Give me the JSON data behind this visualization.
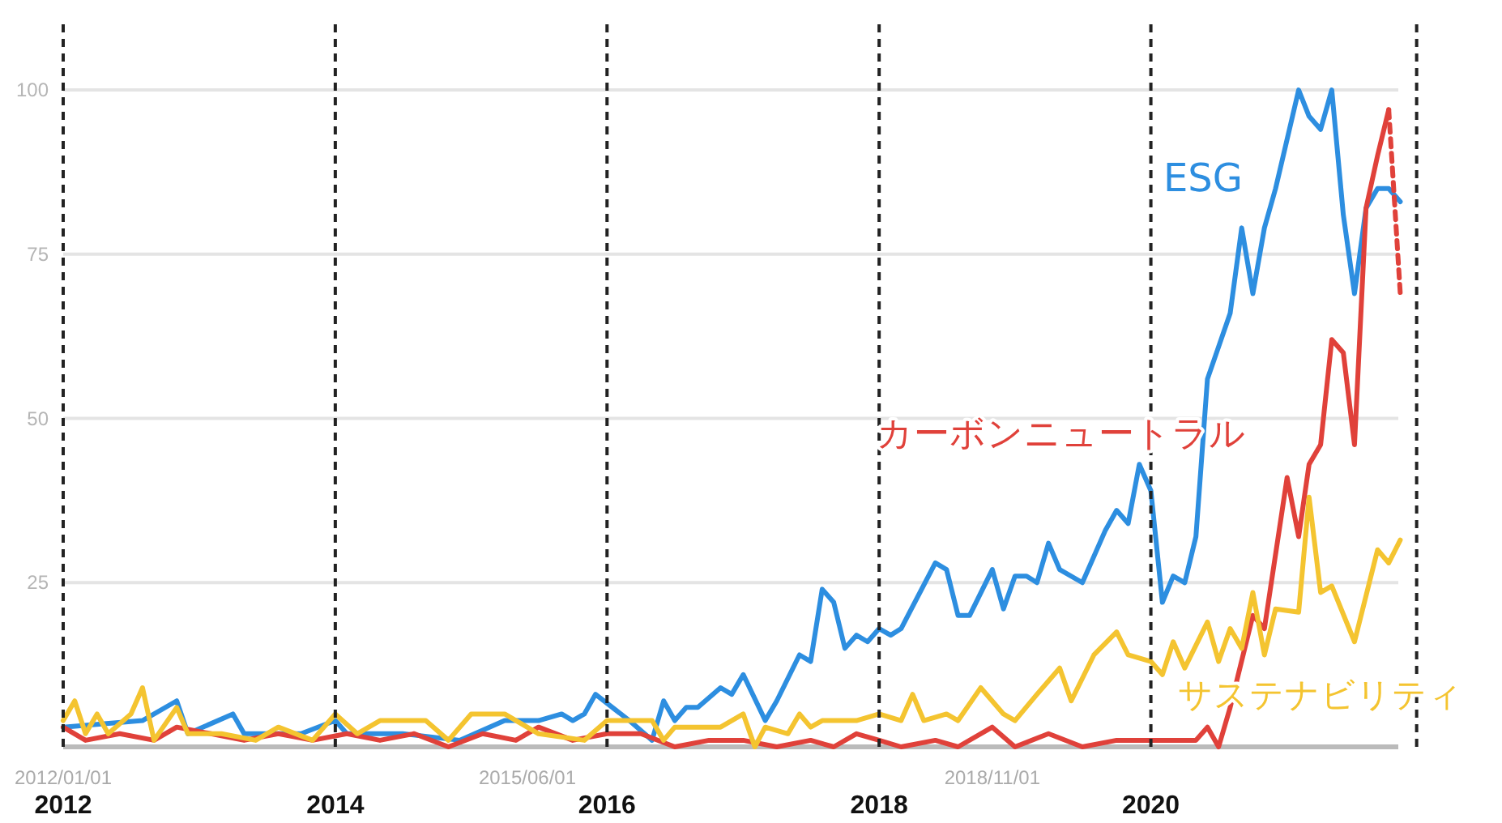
{
  "chart_data": {
    "type": "line",
    "xlim": [
      "2012-01-01",
      "2021-12-31"
    ],
    "ylim": [
      0,
      110
    ],
    "xticks": [
      {
        "value": "2012-01-01",
        "label": "2012/01/01"
      },
      {
        "value": "2015-06-01",
        "label": "2015/06/01"
      },
      {
        "value": "2018-11-01",
        "label": "2018/11/01"
      }
    ],
    "yticks": [
      {
        "value": 0,
        "label": null
      },
      25,
      50,
      75,
      100
    ],
    "grid": "y",
    "ref_lines": [
      {
        "axis": "x",
        "value": "2012-01-01",
        "label": "2012",
        "line_style": "dashed",
        "color": "#222222"
      },
      {
        "axis": "x",
        "value": "2014-01-01",
        "label": "2014",
        "line_style": "dashed",
        "color": "#222222"
      },
      {
        "axis": "x",
        "value": "2016-01-01",
        "label": "2016",
        "line_style": "dashed",
        "color": "#222222"
      },
      {
        "axis": "x",
        "value": "2018-01-01",
        "label": "2018",
        "line_style": "dashed",
        "color": "#222222"
      },
      {
        "axis": "x",
        "value": "2020-01-01",
        "label": "2020",
        "line_style": "dashed",
        "color": "#222222"
      },
      {
        "axis": "x",
        "value": "2021-12-15",
        "line_style": "dashed",
        "color": "#222222"
      }
    ],
    "series": [
      {
        "name": "ESG",
        "color": "#2d8ee0",
        "x": [
          "2012-01",
          "2012-08",
          "2012-11",
          "2012-12",
          "2013-04",
          "2013-05",
          "2013-10",
          "2014-01",
          "2014-02",
          "2014-07",
          "2014-12",
          "2015-04",
          "2015-07",
          "2015-09",
          "2015-10",
          "2015-11",
          "2015-12",
          "2016-03",
          "2016-05",
          "2016-06",
          "2016-07",
          "2016-08",
          "2016-09",
          "2016-11",
          "2016-12",
          "2017-01",
          "2017-03",
          "2017-04",
          "2017-06",
          "2017-07",
          "2017-08",
          "2017-09",
          "2017-10",
          "2017-11",
          "2017-12",
          "2018-01",
          "2018-02",
          "2018-03",
          "2018-06",
          "2018-07",
          "2018-08",
          "2018-09",
          "2018-11",
          "2018-12",
          "2019-01",
          "2019-02",
          "2019-03",
          "2019-04",
          "2019-05",
          "2019-07",
          "2019-09",
          "2019-10",
          "2019-11",
          "2019-12",
          "2020-01",
          "2020-02",
          "2020-03",
          "2020-04",
          "2020-05",
          "2020-06",
          "2020-08",
          "2020-09",
          "2020-10",
          "2020-11",
          "2020-12",
          "2021-02",
          "2021-03",
          "2021-04",
          "2021-05",
          "2021-06",
          "2021-07",
          "2021-08",
          "2021-09",
          "2021-10",
          "2021-11"
        ],
        "values": [
          3,
          4,
          7,
          2,
          5,
          2,
          2,
          4,
          2,
          2,
          1,
          4,
          4,
          5,
          4,
          5,
          8,
          4,
          1,
          7,
          4,
          6,
          6,
          9,
          8,
          11,
          4,
          7,
          14,
          13,
          24,
          22,
          15,
          17,
          16,
          18,
          17,
          18,
          28,
          27,
          20,
          20,
          27,
          21,
          26,
          26,
          25,
          31,
          27,
          25,
          33,
          36,
          34,
          43,
          39,
          22,
          26,
          25,
          32,
          56,
          66,
          79,
          69,
          79,
          85,
          100,
          96,
          94,
          100,
          81,
          69,
          82,
          85,
          85,
          83
        ]
      },
      {
        "name": "カーボンニュートラル",
        "color": "#e0413a",
        "x": [
          "2012-01",
          "2012-03",
          "2012-06",
          "2012-09",
          "2012-11",
          "2013-02",
          "2013-05",
          "2013-08",
          "2013-11",
          "2014-02",
          "2014-05",
          "2014-08",
          "2014-11",
          "2015-02",
          "2015-05",
          "2015-07",
          "2015-10",
          "2016-01",
          "2016-04",
          "2016-07",
          "2016-10",
          "2017-01",
          "2017-04",
          "2017-07",
          "2017-09",
          "2017-11",
          "2018-01",
          "2018-03",
          "2018-06",
          "2018-08",
          "2018-11",
          "2019-01",
          "2019-04",
          "2019-07",
          "2019-10",
          "2020-01",
          "2020-04",
          "2020-05",
          "2020-06",
          "2020-07",
          "2020-08",
          "2020-10",
          "2020-11",
          "2021-01",
          "2021-02",
          "2021-03",
          "2021-04",
          "2021-05",
          "2021-06",
          "2021-07",
          "2021-08",
          "2021-09",
          "2021-10"
        ],
        "values": [
          3,
          1,
          2,
          1,
          3,
          2,
          1,
          2,
          1,
          2,
          1,
          2,
          0,
          2,
          1,
          3,
          1,
          2,
          2,
          0,
          1,
          1,
          0,
          1,
          0,
          2,
          1,
          0,
          1,
          0,
          3,
          0,
          2,
          0,
          1,
          1,
          1,
          1,
          3,
          0,
          6,
          20,
          18,
          41,
          32,
          43,
          46,
          62,
          60,
          46,
          82,
          90,
          97
        ]
      },
      {
        "type": "line",
        "line_style": "dashed",
        "color": "#e0413a",
        "x": [
          "2021-10",
          "2021-11"
        ],
        "values": [
          97,
          69
        ]
      },
      {
        "name": "サステナビリティ",
        "color": "#f4c430",
        "x": [
          "2012-01",
          "2012-02",
          "2012-03",
          "2012-04",
          "2012-05",
          "2012-07",
          "2012-08",
          "2012-09",
          "2012-11",
          "2012-12",
          "2013-03",
          "2013-06",
          "2013-08",
          "2013-11",
          "2014-01",
          "2014-03",
          "2014-05",
          "2014-09",
          "2014-11",
          "2015-01",
          "2015-04",
          "2015-07",
          "2015-11",
          "2016-01",
          "2016-05",
          "2016-06",
          "2016-07",
          "2016-11",
          "2017-01",
          "2017-02",
          "2017-03",
          "2017-05",
          "2017-06",
          "2017-07",
          "2017-08",
          "2017-11",
          "2018-01",
          "2018-03",
          "2018-04",
          "2018-05",
          "2018-07",
          "2018-08",
          "2018-10",
          "2018-12",
          "2019-01",
          "2019-03",
          "2019-05",
          "2019-06",
          "2019-08",
          "2019-10",
          "2019-11",
          "2020-01",
          "2020-02",
          "2020-03",
          "2020-04",
          "2020-06",
          "2020-07",
          "2020-08",
          "2020-09",
          "2020-10",
          "2020-11",
          "2020-12",
          "2021-02",
          "2021-03",
          "2021-04",
          "2021-05",
          "2021-07",
          "2021-09",
          "2021-10",
          "2021-11"
        ],
        "values": [
          4,
          7,
          2,
          5,
          2,
          5,
          9,
          1,
          6,
          2,
          2,
          1,
          3,
          1,
          5,
          2,
          4,
          4,
          1,
          5,
          5,
          2,
          1,
          4,
          4,
          1,
          3,
          3,
          5,
          0,
          3,
          2,
          5,
          3,
          4,
          4,
          5,
          4,
          8,
          4,
          5,
          4,
          9,
          5,
          4,
          8,
          12,
          7,
          14,
          17.5,
          14,
          13,
          11,
          16,
          12,
          19,
          13,
          18,
          15,
          23.5,
          14,
          21,
          20.5,
          38,
          23.5,
          24.5,
          16,
          30,
          28,
          31.5
        ]
      }
    ]
  }
}
